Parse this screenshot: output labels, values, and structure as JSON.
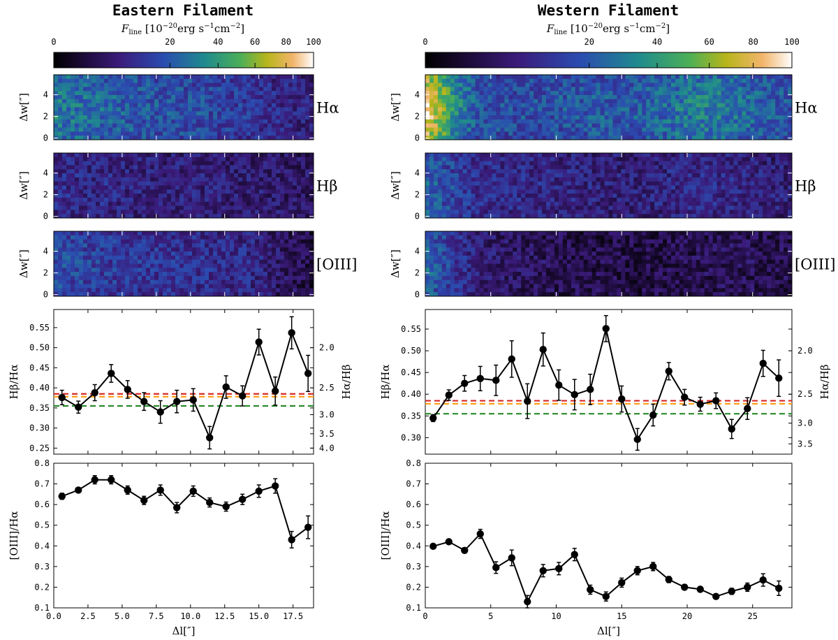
{
  "chart_data": [
    {
      "type": "heatmap",
      "panel": "eastern",
      "title": "Eastern Filament",
      "colorbar": {
        "label": "F_line [10^-20 erg s^-1 cm^-2]",
        "label_parts": {
          "main": "F",
          "sub": "line",
          "unit_pre": "[10",
          "unit_exp": "−20",
          "unit_post": "erg s",
          "unit_exp2": "−1",
          "unit_post2": "cm",
          "unit_exp3": "−2",
          "unit_close": "]"
        },
        "ticks": [
          0,
          20,
          40,
          60,
          80,
          100
        ],
        "tick_labels": [
          "0",
          "20",
          "40",
          "60",
          "80",
          "100"
        ],
        "scale": "sqrt"
      },
      "maps": [
        {
          "line": "Hα",
          "level_profile": [
            0.55,
            0.52,
            0.5,
            0.48,
            0.47,
            0.45,
            0.44,
            0.42,
            0.42,
            0.4,
            0.38,
            0.36,
            0.33,
            0.3,
            0.28,
            0.26
          ]
        },
        {
          "line": "Hβ",
          "level_profile": [
            0.3,
            0.3,
            0.28,
            0.3,
            0.27,
            0.27,
            0.26,
            0.26,
            0.27,
            0.26,
            0.25,
            0.24,
            0.24,
            0.23,
            0.22,
            0.2
          ]
        },
        {
          "line": "[OIII]",
          "level_profile": [
            0.42,
            0.4,
            0.38,
            0.36,
            0.36,
            0.34,
            0.34,
            0.33,
            0.32,
            0.32,
            0.3,
            0.3,
            0.27,
            0.22,
            0.18,
            0.14
          ]
        }
      ],
      "ylabel": "Δw[″]",
      "yticks": [
        "0",
        "2",
        "4"
      ],
      "ylim": [
        0,
        6
      ]
    },
    {
      "type": "heatmap",
      "panel": "western",
      "title": "Western Filament",
      "colorbar": {
        "label": "F_line [10^-20 erg s^-1 cm^-2]",
        "label_parts": {
          "main": "F",
          "sub": "line",
          "unit_pre": "[10",
          "unit_exp": "−20",
          "unit_post": "erg s",
          "unit_exp2": "−1",
          "unit_post2": "cm",
          "unit_exp3": "−2",
          "unit_close": "]"
        },
        "ticks": [
          0,
          20,
          40,
          60,
          80,
          100
        ],
        "tick_labels": [
          "0",
          "20",
          "40",
          "60",
          "80",
          "100"
        ],
        "scale": "sqrt"
      },
      "maps": [
        {
          "line": "Hα",
          "level_profile": [
            0.85,
            0.62,
            0.45,
            0.42,
            0.42,
            0.42,
            0.44,
            0.45,
            0.45,
            0.46,
            0.5,
            0.55,
            0.55,
            0.5,
            0.46,
            0.44
          ]
        },
        {
          "line": "Hβ",
          "level_profile": [
            0.48,
            0.4,
            0.32,
            0.3,
            0.3,
            0.28,
            0.28,
            0.26,
            0.26,
            0.26,
            0.28,
            0.3,
            0.3,
            0.28,
            0.26,
            0.25
          ]
        },
        {
          "line": "[OIII]",
          "level_profile": [
            0.5,
            0.36,
            0.26,
            0.22,
            0.2,
            0.18,
            0.17,
            0.16,
            0.15,
            0.15,
            0.16,
            0.17,
            0.18,
            0.18,
            0.17,
            0.16
          ]
        }
      ],
      "ylabel": "Δw[″]",
      "yticks": [
        "0",
        "2",
        "4"
      ],
      "ylim": [
        0,
        6
      ]
    },
    {
      "type": "line",
      "panel": "eastern-hbha",
      "ylabel": "Hβ/Hα",
      "ylabel_right": "Hα/Hβ",
      "xlim": [
        0,
        19
      ],
      "ylim": [
        0.235,
        0.595
      ],
      "yticks": [
        0.25,
        0.3,
        0.35,
        0.4,
        0.45,
        0.5,
        0.55
      ],
      "ytick_labels": [
        "0.25",
        "0.30",
        "0.35",
        "0.40",
        "0.45",
        "0.50",
        "0.55"
      ],
      "right_ticks": [
        2.0,
        2.5,
        3.0,
        3.5,
        4.0
      ],
      "right_tick_labels": [
        "2.0",
        "2.5",
        "3.0",
        "3.5",
        "4.0"
      ],
      "x": [
        0.6,
        1.8,
        3.0,
        4.2,
        5.4,
        6.6,
        7.8,
        9.0,
        10.2,
        11.4,
        12.6,
        13.8,
        15.0,
        16.2,
        17.4,
        18.6
      ],
      "y": [
        0.376,
        0.352,
        0.388,
        0.436,
        0.396,
        0.366,
        0.34,
        0.366,
        0.37,
        0.276,
        0.402,
        0.38,
        0.514,
        0.392,
        0.537,
        0.436
      ],
      "err": [
        0.018,
        0.015,
        0.02,
        0.022,
        0.022,
        0.022,
        0.028,
        0.028,
        0.028,
        0.028,
        0.028,
        0.025,
        0.032,
        0.035,
        0.04,
        0.045
      ],
      "reference_lines": [
        {
          "name": "red",
          "value": 0.385,
          "color": "#d62728"
        },
        {
          "name": "orange",
          "value": 0.378,
          "color": "#ff9f1a"
        },
        {
          "name": "green",
          "value": 0.355,
          "color": "#2a8a2a"
        }
      ]
    },
    {
      "type": "line",
      "panel": "western-hbha",
      "ylabel": "Hβ/Hα",
      "ylabel_right": "Hα/Hβ",
      "xlim": [
        0,
        28
      ],
      "ylim": [
        0.262,
        0.595
      ],
      "yticks": [
        0.3,
        0.35,
        0.4,
        0.45,
        0.5,
        0.55
      ],
      "ytick_labels": [
        "0.30",
        "0.35",
        "0.40",
        "0.45",
        "0.50",
        "0.55"
      ],
      "right_ticks": [
        2.0,
        2.5,
        3.0,
        3.5
      ],
      "right_tick_labels": [
        "2.0",
        "2.5",
        "3.0",
        "3.5"
      ],
      "x": [
        0.6,
        1.8,
        3.0,
        4.2,
        5.4,
        6.6,
        7.8,
        9.0,
        10.2,
        11.4,
        12.6,
        13.8,
        15.0,
        16.2,
        17.4,
        18.6,
        19.8,
        21.0,
        22.2,
        23.4,
        24.6,
        25.8,
        27.0
      ],
      "y": [
        0.345,
        0.398,
        0.425,
        0.436,
        0.432,
        0.481,
        0.384,
        0.503,
        0.421,
        0.399,
        0.411,
        0.551,
        0.389,
        0.296,
        0.352,
        0.453,
        0.393,
        0.377,
        0.385,
        0.32,
        0.367,
        0.471,
        0.437
      ],
      "err": [
        0.008,
        0.012,
        0.018,
        0.028,
        0.035,
        0.042,
        0.04,
        0.038,
        0.035,
        0.035,
        0.035,
        0.03,
        0.03,
        0.025,
        0.025,
        0.02,
        0.018,
        0.016,
        0.018,
        0.022,
        0.025,
        0.03,
        0.042
      ],
      "reference_lines": [
        {
          "name": "red",
          "value": 0.385,
          "color": "#d62728"
        },
        {
          "name": "orange",
          "value": 0.378,
          "color": "#ff9f1a"
        },
        {
          "name": "green",
          "value": 0.355,
          "color": "#2a8a2a"
        }
      ]
    },
    {
      "type": "line",
      "panel": "eastern-oiiiha",
      "ylabel": "[OIII]/Hα",
      "xlabel": "Δl[″]",
      "xlim": [
        0,
        19
      ],
      "xticks": [
        0,
        2.5,
        5,
        7.5,
        10,
        12.5,
        15,
        17.5
      ],
      "xtick_labels": [
        "0.0",
        "2.5",
        "5.0",
        "7.5",
        "10.0",
        "12.5",
        "15.0",
        "17.5"
      ],
      "ylim": [
        0.1,
        0.8
      ],
      "yticks": [
        0.1,
        0.2,
        0.3,
        0.4,
        0.5,
        0.6,
        0.7,
        0.8
      ],
      "ytick_labels": [
        "0.1",
        "0.2",
        "0.3",
        "0.4",
        "0.5",
        "0.6",
        "0.7",
        "0.8"
      ],
      "x": [
        0.6,
        1.8,
        3.0,
        4.2,
        5.4,
        6.6,
        7.8,
        9.0,
        10.2,
        11.4,
        12.6,
        13.8,
        15.0,
        16.2,
        17.4,
        18.6
      ],
      "y": [
        0.64,
        0.67,
        0.72,
        0.72,
        0.67,
        0.62,
        0.67,
        0.585,
        0.665,
        0.61,
        0.59,
        0.625,
        0.665,
        0.69,
        0.43,
        0.49
      ],
      "err": [
        0.015,
        0.012,
        0.02,
        0.02,
        0.02,
        0.02,
        0.025,
        0.025,
        0.025,
        0.022,
        0.022,
        0.025,
        0.03,
        0.035,
        0.04,
        0.055
      ]
    },
    {
      "type": "line",
      "panel": "western-oiiiha",
      "ylabel": "[OIII]/Hα",
      "xlabel": "Δl[″]",
      "xlim": [
        0,
        28
      ],
      "xticks": [
        0,
        5,
        10,
        15,
        20,
        25
      ],
      "xtick_labels": [
        "0",
        "5",
        "10",
        "15",
        "20",
        "25"
      ],
      "ylim": [
        0.1,
        0.8
      ],
      "yticks": [
        0.1,
        0.2,
        0.3,
        0.4,
        0.5,
        0.6,
        0.7,
        0.8
      ],
      "ytick_labels": [
        "0.1",
        "0.2",
        "0.3",
        "0.4",
        "0.5",
        "0.6",
        "0.7",
        "0.8"
      ],
      "x": [
        0.6,
        1.8,
        3.0,
        4.2,
        5.4,
        6.6,
        7.8,
        9.0,
        10.2,
        11.4,
        12.6,
        13.8,
        15.0,
        16.2,
        17.4,
        18.6,
        19.8,
        21.0,
        22.2,
        23.4,
        24.6,
        25.8,
        27.0
      ],
      "y": [
        0.398,
        0.42,
        0.378,
        0.458,
        0.295,
        0.342,
        0.13,
        0.28,
        0.29,
        0.358,
        0.188,
        0.155,
        0.222,
        0.28,
        0.3,
        0.237,
        0.2,
        0.19,
        0.155,
        0.18,
        0.2,
        0.235,
        0.195
      ],
      "err": [
        0.01,
        0.012,
        0.012,
        0.022,
        0.028,
        0.038,
        0.03,
        0.03,
        0.03,
        0.03,
        0.022,
        0.022,
        0.022,
        0.02,
        0.02,
        0.015,
        0.012,
        0.012,
        0.012,
        0.015,
        0.02,
        0.03,
        0.035
      ]
    }
  ]
}
